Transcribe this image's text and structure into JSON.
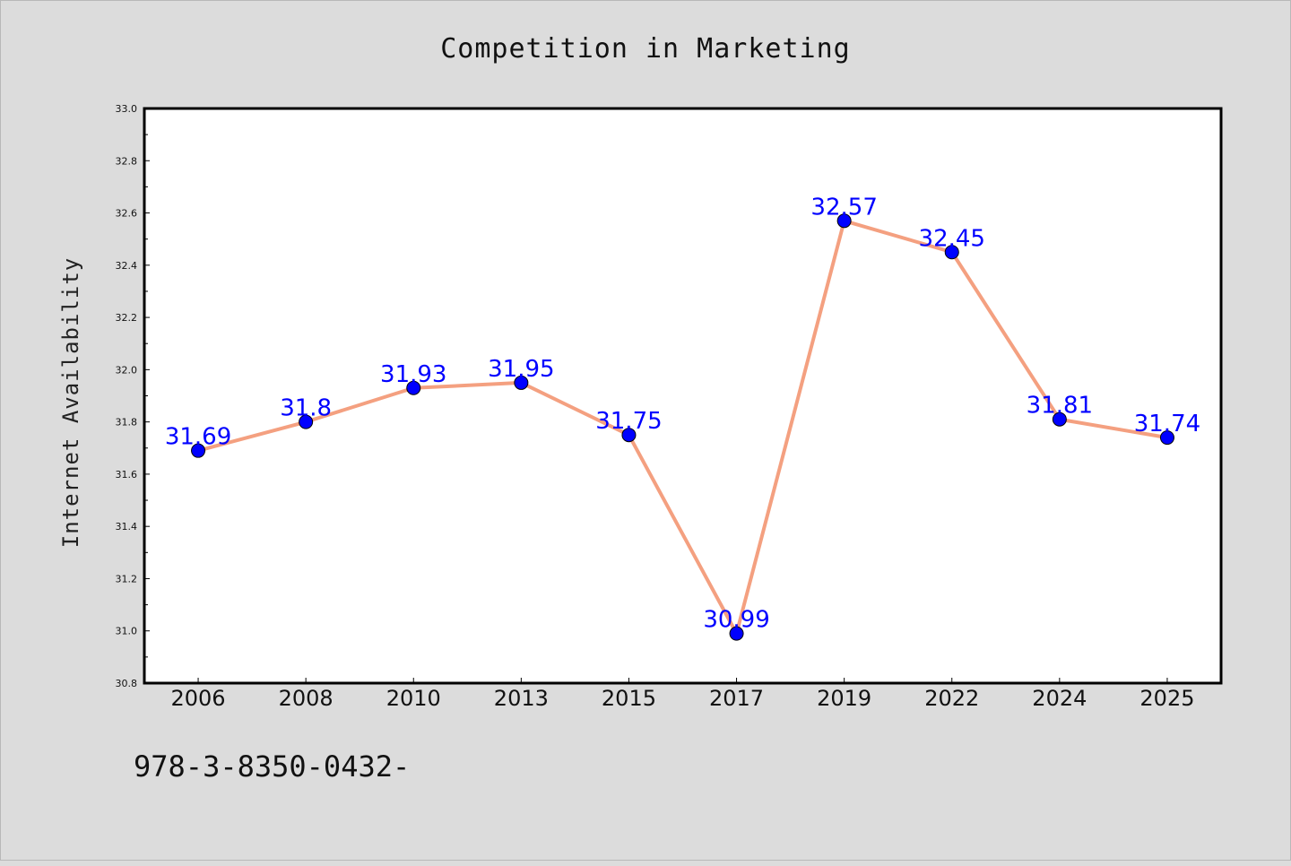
{
  "chart_data": {
    "type": "line",
    "title": "Competition in Marketing",
    "xlabel": "",
    "ylabel": "Internet Availability",
    "categories": [
      "2006",
      "2008",
      "2010",
      "2013",
      "2015",
      "2017",
      "2019",
      "2022",
      "2024",
      "2025"
    ],
    "values": [
      31.69,
      31.8,
      31.93,
      31.95,
      31.75,
      30.99,
      32.57,
      32.45,
      31.81,
      31.74
    ],
    "data_labels": [
      "31.69",
      "31.8",
      "31.93",
      "31.95",
      "31.75",
      "30.99",
      "32.57",
      "32.45",
      "31.81",
      "31.74"
    ],
    "ylim": [
      30.8,
      33.0
    ],
    "yticks": [
      "30.8",
      "31.0",
      "31.2",
      "31.4",
      "31.6",
      "31.8",
      "32.0",
      "32.2",
      "32.4",
      "32.6",
      "32.8",
      "33.0"
    ],
    "grid": false,
    "line_color": "#f4a080",
    "marker_color": "#0000ff",
    "label_color": "#0000ff",
    "background": "#dcdcdc",
    "plot_background": "#ffffff"
  },
  "footer_text": "978-3-8350-0432-"
}
